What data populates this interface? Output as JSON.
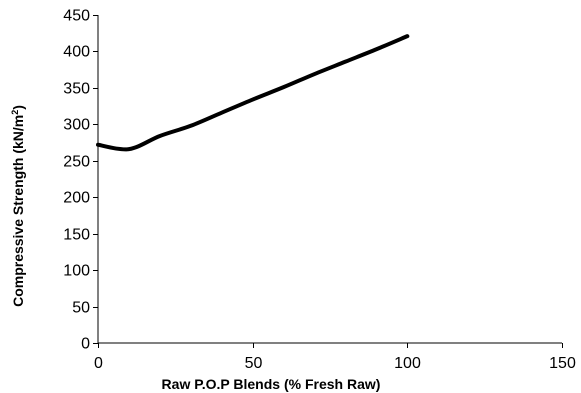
{
  "chart_data": {
    "type": "line",
    "title": "",
    "xlabel": "Raw P.O.P Blends (% Fresh Raw)",
    "ylabel": "Compressive Strength (kN/m",
    "ylabel_superscript": "2",
    "ylabel_suffix": ")",
    "xlim": [
      0,
      150
    ],
    "ylim": [
      0,
      450
    ],
    "x_ticks": [
      0,
      50,
      100,
      150
    ],
    "y_ticks": [
      0,
      50,
      100,
      150,
      200,
      250,
      300,
      350,
      400,
      450
    ],
    "grid": false,
    "legend": "none",
    "series": [
      {
        "color": "#000000",
        "smooth": true,
        "points": [
          {
            "x": 0,
            "y": 272
          },
          {
            "x": 10,
            "y": 266
          },
          {
            "x": 20,
            "y": 284
          },
          {
            "x": 30,
            "y": 298
          },
          {
            "x": 40,
            "y": 316
          },
          {
            "x": 50,
            "y": 334
          },
          {
            "x": 60,
            "y": 351
          },
          {
            "x": 70,
            "y": 369
          },
          {
            "x": 80,
            "y": 386
          },
          {
            "x": 90,
            "y": 403
          },
          {
            "x": 100,
            "y": 421
          }
        ]
      }
    ]
  }
}
